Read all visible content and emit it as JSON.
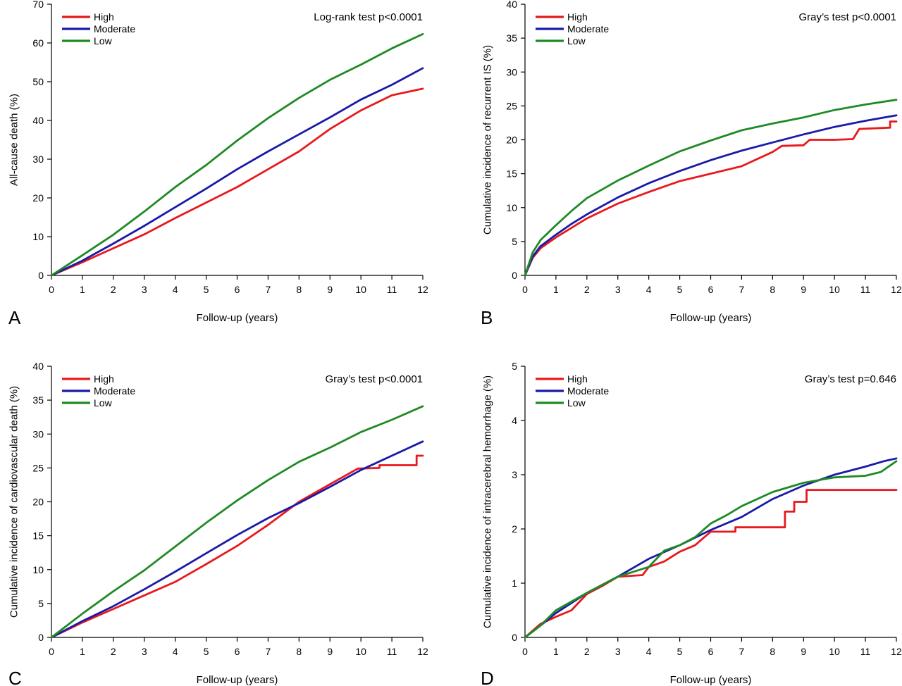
{
  "colors": {
    "high": "#e8191c",
    "moderate": "#1a1aa8",
    "low": "#1f8a24",
    "axis": "#000000"
  },
  "chart_data": [
    {
      "panel_letter": "A",
      "type": "line",
      "title": "",
      "xlabel": "Follow-up (years)",
      "ylabel": "All-cause death (%)",
      "annotation": "Log-rank test p<0.0001",
      "xlim": [
        0,
        12
      ],
      "ylim": [
        0,
        70
      ],
      "xticks": [
        0,
        1,
        2,
        3,
        4,
        5,
        6,
        7,
        8,
        9,
        10,
        11,
        12
      ],
      "yticks": [
        0,
        10,
        20,
        30,
        40,
        50,
        60,
        70
      ],
      "legend_position": "top-left",
      "series": [
        {
          "name": "High",
          "color_key": "high",
          "points": [
            [
              0,
              0
            ],
            [
              1,
              3.4
            ],
            [
              2,
              7.0
            ],
            [
              3,
              10.6
            ],
            [
              4,
              14.8
            ],
            [
              5,
              18.8
            ],
            [
              6,
              22.8
            ],
            [
              7,
              27.4
            ],
            [
              8,
              32.0
            ],
            [
              9,
              37.8
            ],
            [
              10,
              42.6
            ],
            [
              11,
              46.5
            ],
            [
              12,
              48.2
            ]
          ]
        },
        {
          "name": "Moderate",
          "color_key": "moderate",
          "points": [
            [
              0,
              0
            ],
            [
              1,
              3.8
            ],
            [
              2,
              8.2
            ],
            [
              3,
              12.8
            ],
            [
              4,
              17.6
            ],
            [
              5,
              22.4
            ],
            [
              6,
              27.4
            ],
            [
              7,
              32.0
            ],
            [
              8,
              36.4
            ],
            [
              9,
              40.8
            ],
            [
              10,
              45.4
            ],
            [
              11,
              49.2
            ],
            [
              12,
              53.5
            ]
          ]
        },
        {
          "name": "Low",
          "color_key": "low",
          "points": [
            [
              0,
              0
            ],
            [
              1,
              5.2
            ],
            [
              2,
              10.5
            ],
            [
              3,
              16.5
            ],
            [
              4,
              22.8
            ],
            [
              5,
              28.5
            ],
            [
              6,
              34.8
            ],
            [
              7,
              40.6
            ],
            [
              8,
              45.8
            ],
            [
              9,
              50.5
            ],
            [
              10,
              54.4
            ],
            [
              11,
              58.6
            ],
            [
              12,
              62.3
            ]
          ]
        }
      ]
    },
    {
      "panel_letter": "B",
      "type": "line",
      "title": "",
      "xlabel": "Follow-up (years)",
      "ylabel": "Cumulative incidence of recurrent IS (%)",
      "annotation": "Gray’s test p<0.0001",
      "xlim": [
        0,
        12
      ],
      "ylim": [
        0,
        40
      ],
      "xticks": [
        0,
        1,
        2,
        3,
        4,
        5,
        6,
        7,
        8,
        9,
        10,
        11,
        12
      ],
      "yticks": [
        0,
        5,
        10,
        15,
        20,
        25,
        30,
        35,
        40
      ],
      "legend_position": "top-left",
      "series": [
        {
          "name": "High",
          "color_key": "high",
          "points": [
            [
              0,
              0
            ],
            [
              0.25,
              2.6
            ],
            [
              0.5,
              4.0
            ],
            [
              1,
              5.6
            ],
            [
              1.5,
              7.0
            ],
            [
              2,
              8.4
            ],
            [
              3,
              10.6
            ],
            [
              4,
              12.3
            ],
            [
              5,
              13.9
            ],
            [
              6,
              15.0
            ],
            [
              7,
              16.1
            ],
            [
              8,
              18.2
            ],
            [
              8.3,
              19.1
            ],
            [
              9,
              19.2
            ],
            [
              9.2,
              20.0
            ],
            [
              10,
              20.0
            ],
            [
              10.6,
              20.1
            ],
            [
              10.8,
              21.6
            ],
            [
              11.8,
              21.8
            ],
            [
              11.8,
              22.7
            ],
            [
              12,
              22.7
            ]
          ]
        },
        {
          "name": "Moderate",
          "color_key": "moderate",
          "points": [
            [
              0,
              0
            ],
            [
              0.25,
              2.8
            ],
            [
              0.5,
              4.3
            ],
            [
              1,
              6.0
            ],
            [
              1.5,
              7.6
            ],
            [
              2,
              9.0
            ],
            [
              3,
              11.5
            ],
            [
              4,
              13.6
            ],
            [
              5,
              15.4
            ],
            [
              6,
              17.0
            ],
            [
              7,
              18.4
            ],
            [
              8,
              19.6
            ],
            [
              9,
              20.8
            ],
            [
              10,
              21.9
            ],
            [
              11,
              22.8
            ],
            [
              12,
              23.6
            ]
          ]
        },
        {
          "name": "Low",
          "color_key": "low",
          "points": [
            [
              0,
              0
            ],
            [
              0.25,
              3.4
            ],
            [
              0.5,
              5.2
            ],
            [
              1,
              7.4
            ],
            [
              1.5,
              9.5
            ],
            [
              2,
              11.4
            ],
            [
              3,
              14.0
            ],
            [
              4,
              16.2
            ],
            [
              5,
              18.3
            ],
            [
              6,
              19.9
            ],
            [
              7,
              21.4
            ],
            [
              8,
              22.4
            ],
            [
              9,
              23.3
            ],
            [
              10,
              24.4
            ],
            [
              11,
              25.2
            ],
            [
              12,
              25.9
            ]
          ]
        }
      ]
    },
    {
      "panel_letter": "C",
      "type": "line",
      "title": "",
      "xlabel": "Follow-up (years)",
      "ylabel": "Cumulative incidence of cardiovascular death (%)",
      "annotation": "Gray’s test p<0.0001",
      "xlim": [
        0,
        12
      ],
      "ylim": [
        0,
        40
      ],
      "xticks": [
        0,
        1,
        2,
        3,
        4,
        5,
        6,
        7,
        8,
        9,
        10,
        11,
        12
      ],
      "yticks": [
        0,
        5,
        10,
        15,
        20,
        25,
        30,
        35,
        40
      ],
      "legend_position": "top-left",
      "series": [
        {
          "name": "High",
          "color_key": "high",
          "points": [
            [
              0,
              0
            ],
            [
              1,
              2.2
            ],
            [
              2,
              4.2
            ],
            [
              3,
              6.2
            ],
            [
              4,
              8.2
            ],
            [
              5,
              10.8
            ],
            [
              6,
              13.5
            ],
            [
              7,
              16.6
            ],
            [
              8,
              20.0
            ],
            [
              9,
              22.6
            ],
            [
              9.9,
              24.9
            ],
            [
              10.6,
              25.0
            ],
            [
              10.6,
              25.4
            ],
            [
              11.8,
              25.4
            ],
            [
              11.8,
              26.8
            ],
            [
              12,
              26.8
            ]
          ]
        },
        {
          "name": "Moderate",
          "color_key": "moderate",
          "points": [
            [
              0,
              0
            ],
            [
              1,
              2.4
            ],
            [
              2,
              4.6
            ],
            [
              3,
              7.1
            ],
            [
              4,
              9.7
            ],
            [
              5,
              12.4
            ],
            [
              6,
              15.1
            ],
            [
              7,
              17.6
            ],
            [
              8,
              19.8
            ],
            [
              9,
              22.2
            ],
            [
              10,
              24.7
            ],
            [
              11,
              26.8
            ],
            [
              12,
              28.9
            ]
          ]
        },
        {
          "name": "Low",
          "color_key": "low",
          "points": [
            [
              0,
              0
            ],
            [
              1,
              3.5
            ],
            [
              2,
              6.8
            ],
            [
              3,
              9.9
            ],
            [
              4,
              13.4
            ],
            [
              5,
              16.9
            ],
            [
              6,
              20.2
            ],
            [
              7,
              23.2
            ],
            [
              8,
              25.9
            ],
            [
              9,
              28.0
            ],
            [
              10,
              30.3
            ],
            [
              11,
              32.1
            ],
            [
              12,
              34.1
            ]
          ]
        }
      ]
    },
    {
      "panel_letter": "D",
      "type": "line",
      "title": "",
      "xlabel": "Follow-up (years)",
      "ylabel": "Cumulative incidence of intracerebral hemorrhage (%)",
      "annotation": "Gray’s test p=0.646",
      "xlim": [
        0,
        12
      ],
      "ylim": [
        0,
        5
      ],
      "xticks": [
        0,
        1,
        2,
        3,
        4,
        5,
        6,
        7,
        8,
        9,
        10,
        11,
        12
      ],
      "yticks": [
        0,
        1,
        2,
        3,
        4,
        5
      ],
      "legend_position": "top-left",
      "series": [
        {
          "name": "High",
          "color_key": "high",
          "points": [
            [
              0,
              0
            ],
            [
              0.5,
              0.25
            ],
            [
              1,
              0.38
            ],
            [
              1.5,
              0.5
            ],
            [
              2,
              0.8
            ],
            [
              2.5,
              0.95
            ],
            [
              3,
              1.12
            ],
            [
              3.8,
              1.15
            ],
            [
              4,
              1.3
            ],
            [
              4.5,
              1.4
            ],
            [
              5,
              1.58
            ],
            [
              5.5,
              1.7
            ],
            [
              5.8,
              1.85
            ],
            [
              6,
              1.95
            ],
            [
              6.8,
              1.95
            ],
            [
              6.8,
              2.03
            ],
            [
              8.4,
              2.03
            ],
            [
              8.4,
              2.32
            ],
            [
              8.7,
              2.32
            ],
            [
              8.7,
              2.5
            ],
            [
              9.1,
              2.5
            ],
            [
              9.1,
              2.72
            ],
            [
              12,
              2.72
            ]
          ]
        },
        {
          "name": "Moderate",
          "color_key": "moderate",
          "points": [
            [
              0,
              0
            ],
            [
              0.5,
              0.22
            ],
            [
              1,
              0.45
            ],
            [
              2,
              0.82
            ],
            [
              3,
              1.12
            ],
            [
              4,
              1.45
            ],
            [
              5,
              1.7
            ],
            [
              6,
              1.98
            ],
            [
              7,
              2.22
            ],
            [
              8,
              2.55
            ],
            [
              9,
              2.8
            ],
            [
              10,
              3.0
            ],
            [
              11,
              3.15
            ],
            [
              11.6,
              3.25
            ],
            [
              12,
              3.3
            ]
          ]
        },
        {
          "name": "Low",
          "color_key": "low",
          "points": [
            [
              0,
              0
            ],
            [
              0.5,
              0.22
            ],
            [
              1,
              0.5
            ],
            [
              2,
              0.82
            ],
            [
              3,
              1.12
            ],
            [
              4,
              1.3
            ],
            [
              4.5,
              1.6
            ],
            [
              5,
              1.7
            ],
            [
              5.5,
              1.85
            ],
            [
              6,
              2.1
            ],
            [
              6.5,
              2.25
            ],
            [
              7,
              2.42
            ],
            [
              8,
              2.68
            ],
            [
              9,
              2.85
            ],
            [
              10,
              2.95
            ],
            [
              11,
              2.98
            ],
            [
              11.5,
              3.05
            ],
            [
              12,
              3.25
            ]
          ]
        }
      ]
    }
  ]
}
